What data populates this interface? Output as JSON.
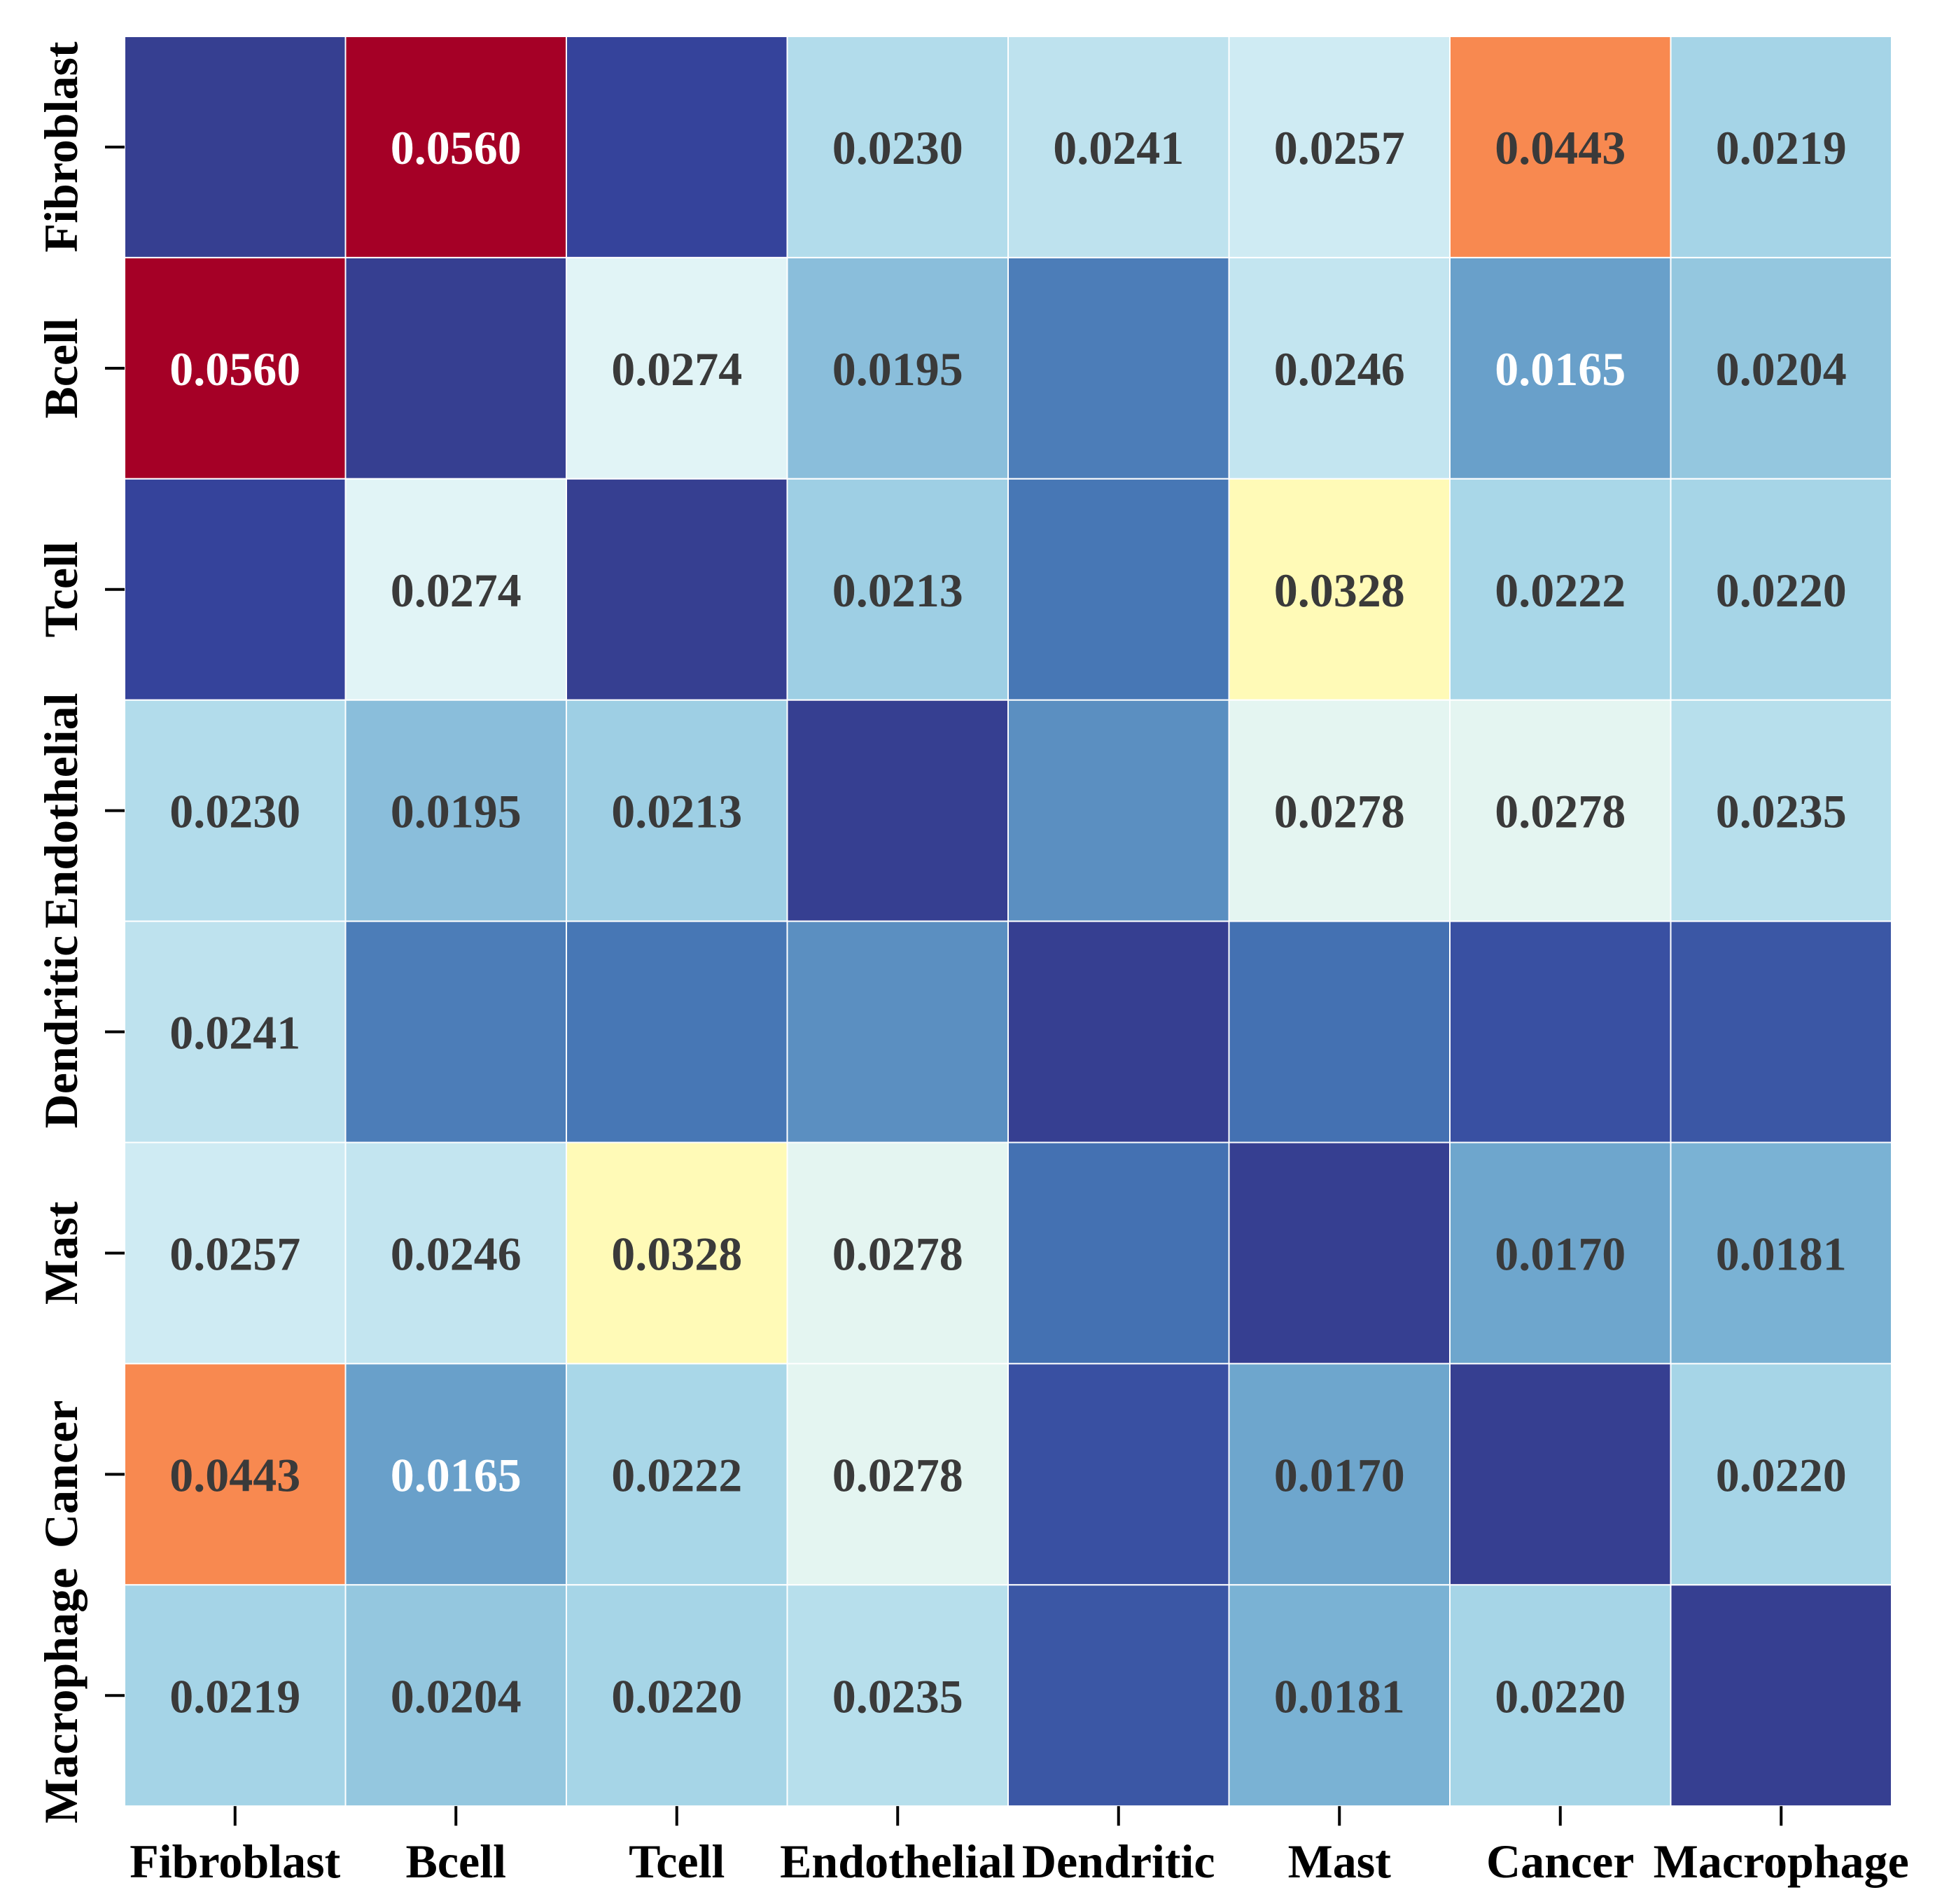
{
  "chart_data": {
    "type": "heatmap",
    "title": "",
    "xlabel": "",
    "ylabel": "",
    "x_categories": [
      "Fibroblast",
      "Bcell",
      "Tcell",
      "Endothelial",
      "Dendritic",
      "Mast",
      "Cancer",
      "Macrophage"
    ],
    "y_categories": [
      "Fibroblast",
      "Bcell",
      "Tcell",
      "Endothelial",
      "Dendritic",
      "Mast",
      "Cancer",
      "Macrophage"
    ],
    "values": [
      [
        null,
        0.056,
        0.009,
        0.023,
        0.0241,
        0.0257,
        0.0443,
        0.0219
      ],
      [
        0.056,
        null,
        0.0274,
        0.0195,
        0.0135,
        0.0246,
        0.0165,
        0.0204
      ],
      [
        0.009,
        0.0274,
        null,
        0.0213,
        0.013,
        0.0328,
        0.0222,
        0.022
      ],
      [
        0.023,
        0.0195,
        0.0213,
        null,
        0.015,
        0.0278,
        0.0278,
        0.0235
      ],
      [
        0.0241,
        0.0135,
        0.013,
        0.015,
        null,
        0.0125,
        0.01,
        0.0105
      ],
      [
        0.0257,
        0.0246,
        0.0328,
        0.0278,
        0.0125,
        null,
        0.017,
        0.0181
      ],
      [
        0.0443,
        0.0165,
        0.0222,
        0.0278,
        0.01,
        0.017,
        null,
        0.022
      ],
      [
        0.0219,
        0.0204,
        0.022,
        0.0235,
        0.0105,
        0.0181,
        0.022,
        null
      ]
    ],
    "cell_labels": [
      [
        "",
        "0.0560",
        "",
        "0.0230",
        "0.0241",
        "0.0257",
        "0.0443",
        "0.0219"
      ],
      [
        "0.0560",
        "",
        "0.0274",
        "0.0195",
        "",
        "0.0246",
        "0.0165",
        "0.0204"
      ],
      [
        "",
        "0.0274",
        "",
        "0.0213",
        "",
        "0.0328",
        "0.0222",
        "0.0220"
      ],
      [
        "0.0230",
        "0.0195",
        "0.0213",
        "",
        "",
        "0.0278",
        "0.0278",
        "0.0235"
      ],
      [
        "0.0241",
        "",
        "",
        "",
        "",
        "",
        "",
        ""
      ],
      [
        "0.0257",
        "0.0246",
        "0.0328",
        "0.0278",
        "",
        "",
        "0.0170",
        "0.0181"
      ],
      [
        "0.0443",
        "0.0165",
        "0.0222",
        "0.0278",
        "",
        "0.0170",
        "",
        "0.0220"
      ],
      [
        "0.0219",
        "0.0204",
        "0.0220",
        "0.0235",
        "",
        "0.0181",
        "0.0220",
        ""
      ]
    ],
    "colormap": "RdYlBu_r",
    "diagonal_color": "#363f91",
    "vmin": 0.008,
    "vmax": 0.056,
    "colorbar": false,
    "grid": false
  }
}
